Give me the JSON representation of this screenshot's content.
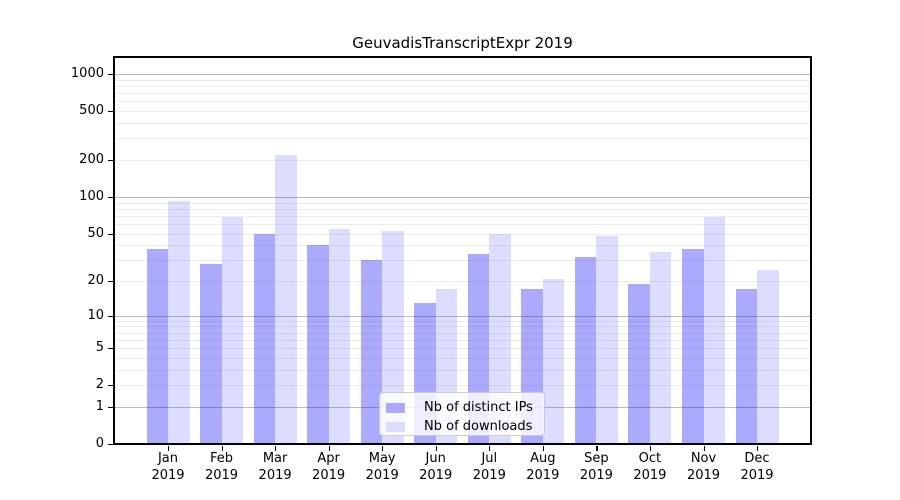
{
  "title": "GeuvadisTranscriptExpr 2019",
  "colors": {
    "ips_bar": "#aaaaff",
    "downloads_bar": "#ddddff",
    "grid_major": "rgba(60,60,60,0.35)",
    "grid_minor": "rgba(0,0,0,0.07)",
    "axis": "#000000",
    "background": "#ffffff"
  },
  "legend": {
    "items": [
      {
        "label": "Nb of distinct IPs",
        "series": "ips"
      },
      {
        "label": "Nb of downloads",
        "series": "downloads"
      }
    ]
  },
  "y_axis": {
    "scale": "log1p",
    "tick_labels": [
      "1000",
      "500",
      "200",
      "100",
      "50",
      "20",
      "10",
      "5",
      "2",
      "1",
      "0"
    ],
    "tick_values": [
      1000,
      500,
      200,
      100,
      50,
      20,
      10,
      5,
      2,
      1,
      0
    ],
    "major_grid_values": [
      1,
      10,
      100,
      1000
    ],
    "minor_grid_values": [
      2,
      3,
      4,
      5,
      6,
      7,
      8,
      9,
      20,
      30,
      40,
      50,
      60,
      70,
      80,
      90,
      200,
      300,
      400,
      500,
      600,
      700,
      800,
      900
    ]
  },
  "x_axis": {
    "months": [
      "Jan",
      "Feb",
      "Mar",
      "Apr",
      "May",
      "Jun",
      "Jul",
      "Aug",
      "Sep",
      "Oct",
      "Nov",
      "Dec"
    ],
    "year": "2019"
  },
  "chart_data": {
    "type": "bar",
    "title": "GeuvadisTranscriptExpr 2019",
    "xlabel": "",
    "ylabel": "",
    "yscale": "log1p",
    "yticks": [
      0,
      1,
      2,
      5,
      10,
      20,
      50,
      100,
      200,
      500,
      1000
    ],
    "ylim": [
      0,
      1375
    ],
    "grid": true,
    "legend_position": "inside lower-center",
    "categories": [
      "Jan 2019",
      "Feb 2019",
      "Mar 2019",
      "Apr 2019",
      "May 2019",
      "Jun 2019",
      "Jul 2019",
      "Aug 2019",
      "Sep 2019",
      "Oct 2019",
      "Nov 2019",
      "Dec 2019"
    ],
    "series": [
      {
        "name": "Nb of distinct IPs",
        "color": "#aaaaff",
        "values": [
          37,
          28,
          50,
          40,
          30,
          13,
          34,
          17,
          32,
          19,
          37,
          17
        ]
      },
      {
        "name": "Nb of downloads",
        "color": "#ddddff",
        "values": [
          92,
          68,
          218,
          54,
          52,
          17,
          50,
          21,
          48,
          35,
          68,
          25
        ]
      }
    ]
  }
}
